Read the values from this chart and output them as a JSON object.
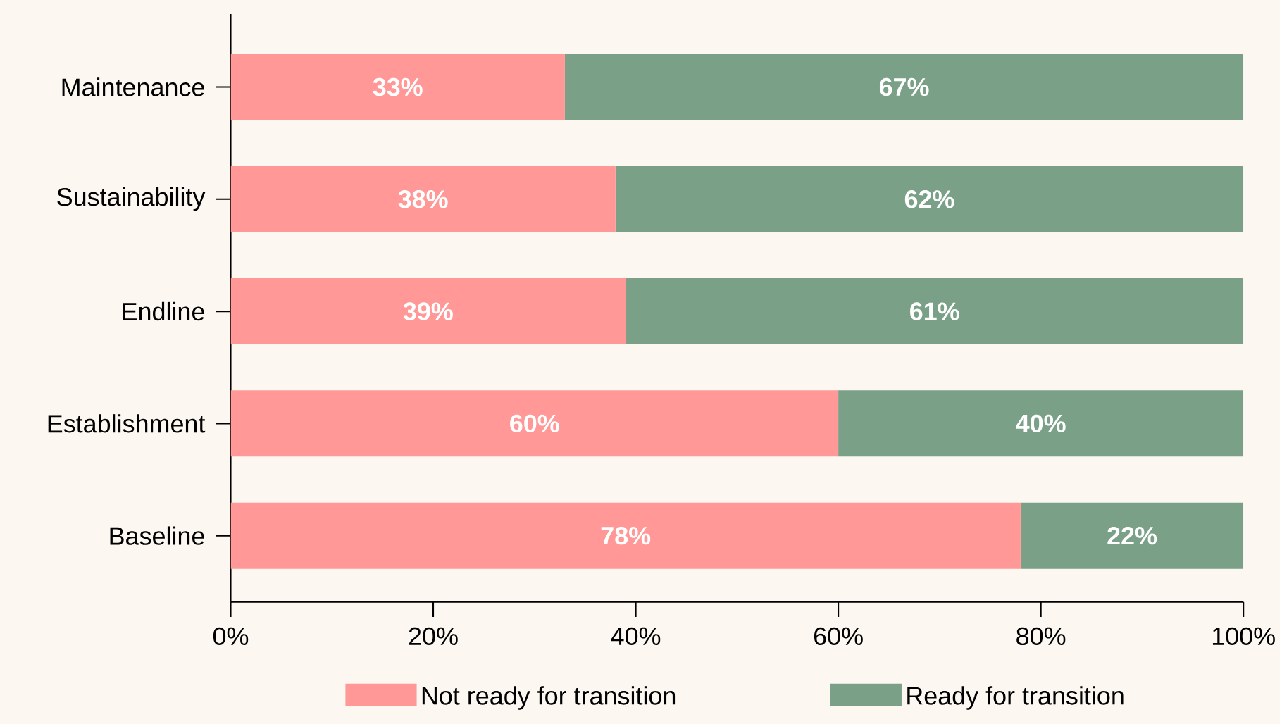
{
  "chart_data": {
    "type": "bar",
    "orientation": "horizontal",
    "stacked": true,
    "categories": [
      "Maintenance",
      "Sustainability",
      "Endline",
      "Establishment",
      "Baseline"
    ],
    "series": [
      {
        "name": "Not ready for transition",
        "color": "#ff9896",
        "values": [
          33,
          38,
          39,
          60,
          78
        ],
        "value_labels": [
          "33%",
          "38%",
          "39%",
          "60%",
          "78%"
        ]
      },
      {
        "name": "Ready for transition",
        "color": "#7aa187",
        "values": [
          67,
          62,
          61,
          40,
          22
        ],
        "value_labels": [
          "67%",
          "62%",
          "61%",
          "40%",
          "22%"
        ]
      }
    ],
    "xlim": [
      0,
      100
    ],
    "xticks": [
      {
        "value": 0,
        "label": "0%"
      },
      {
        "value": 20,
        "label": "20%"
      },
      {
        "value": 40,
        "label": "40%"
      },
      {
        "value": 60,
        "label": "60%"
      },
      {
        "value": 80,
        "label": "80%"
      },
      {
        "value": 100,
        "label": "100%"
      }
    ],
    "grid": false,
    "legend": "bottom"
  }
}
